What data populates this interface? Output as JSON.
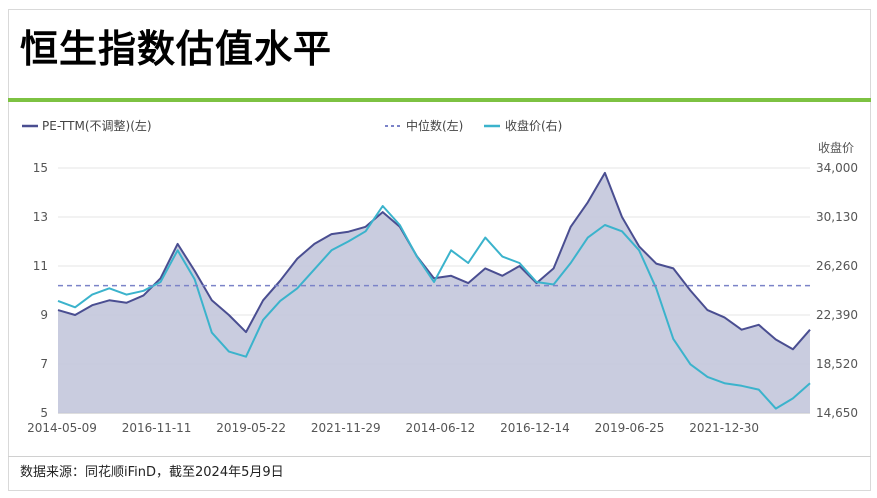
{
  "title": "恒生指数估值水平",
  "source": "数据来源：同花顺iFinD，截至2024年5月9日",
  "colors": {
    "pe_line": "#4a4e91",
    "pe_fill": "#c3c6dc",
    "median": "#7b83c8",
    "close": "#3bb3cc",
    "accent_rule": "#7dc242"
  },
  "chart_data": {
    "type": "line",
    "title": "",
    "right_axis_title": "收盘价",
    "legend": {
      "position": "top-left",
      "entries": [
        {
          "label": "PE-TTM(不调整)(左)",
          "style": "solid",
          "color": "#4a4e91"
        },
        {
          "label": "中位数(左)",
          "style": "dotted",
          "color": "#7b83c8"
        },
        {
          "label": "收盘价(右)",
          "style": "solid",
          "color": "#3bb3cc"
        }
      ]
    },
    "y_left": {
      "min": 5,
      "max": 15,
      "ticks": [
        "15",
        "13",
        "11",
        "9",
        "7",
        "5"
      ]
    },
    "y_right": {
      "min": 14650,
      "max": 34000,
      "ticks": [
        "34,000",
        "30,130",
        "26,260",
        "22,390",
        "18,520",
        "14,650"
      ]
    },
    "x_tick_labels": [
      "2014-05-09",
      "2016-11-11",
      "2019-05-22",
      "2021-11-29",
      "2014-06-12",
      "2016-12-14",
      "2019-06-25",
      "2021-12-30"
    ],
    "grid": true,
    "median_pe": 10.2,
    "series": [
      {
        "name": "PE-TTM(不调整)(左)",
        "axis": "left",
        "filled": true,
        "values": [
          9.2,
          9.0,
          9.4,
          9.6,
          9.5,
          9.8,
          10.5,
          11.9,
          10.8,
          9.6,
          9.0,
          8.3,
          9.6,
          10.4,
          11.3,
          11.9,
          12.3,
          12.4,
          12.6,
          13.2,
          12.6,
          11.4,
          10.5,
          10.6,
          10.3,
          10.9,
          10.6,
          11.0,
          10.3,
          10.9,
          12.6,
          13.6,
          14.8,
          13.0,
          11.8,
          11.1,
          10.9,
          10.0,
          9.2,
          8.9,
          8.4,
          8.6,
          8.0,
          7.6,
          8.4
        ]
      },
      {
        "name": "收盘价(右)",
        "axis": "right",
        "filled": false,
        "values": [
          23500,
          23000,
          24000,
          24500,
          24000,
          24300,
          25000,
          27500,
          25200,
          21000,
          19500,
          19100,
          22000,
          23500,
          24500,
          26000,
          27500,
          28200,
          29000,
          31000,
          29500,
          27000,
          25000,
          27500,
          26500,
          28500,
          27000,
          26500,
          25000,
          24800,
          26500,
          28500,
          29500,
          29000,
          27500,
          24500,
          20500,
          18500,
          17500,
          17000,
          16800,
          16500,
          15000,
          15800,
          17000
        ]
      }
    ]
  }
}
